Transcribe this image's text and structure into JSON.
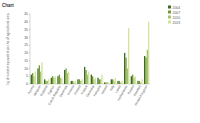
{
  "chart_data": {
    "type": "bar",
    "title": "Chart",
    "y_label": "kg of nutrient equivalent per ha of agricultural area",
    "categories": [
      "Austria",
      "Belgium",
      "Bulgaria",
      "Cyprus",
      "Czech Republic",
      "Denmark",
      "Estonia",
      "Finland",
      "France",
      "Germany",
      "Hungary",
      "Ireland",
      "Italy",
      "Latvia",
      "Netherlands",
      "Poland",
      "Slovakia",
      "United Kingdom"
    ],
    "series": [
      {
        "name": "2004",
        "color": "#3d6b22",
        "values": [
          6,
          10,
          3,
          4,
          5,
          9,
          2,
          3,
          11,
          6,
          4,
          1,
          3,
          2,
          20,
          5,
          2,
          18
        ]
      },
      {
        "name": "2007",
        "color": "#6f9a3a",
        "values": [
          7,
          12,
          2,
          5,
          6,
          10,
          2,
          3,
          9,
          5,
          3,
          1,
          3,
          2,
          17,
          6,
          2,
          17
        ]
      },
      {
        "name": "2010",
        "color": "#a6c46a",
        "values": [
          5,
          8,
          2,
          4,
          4,
          7,
          1,
          2,
          6,
          3,
          3,
          1,
          2,
          1,
          10,
          4,
          1,
          22
        ]
      },
      {
        "name": "2013",
        "color": "#d4e39a",
        "values": [
          8,
          14,
          3,
          5,
          4,
          8,
          2,
          3,
          8,
          4,
          6,
          1,
          4,
          2,
          36,
          5,
          3,
          40
        ]
      }
    ],
    "ylim": [
      0,
      45
    ],
    "yticks": [
      0,
      5,
      10,
      15,
      20,
      25,
      30,
      35,
      40,
      45
    ],
    "grid": false,
    "legend": "top-right"
  }
}
